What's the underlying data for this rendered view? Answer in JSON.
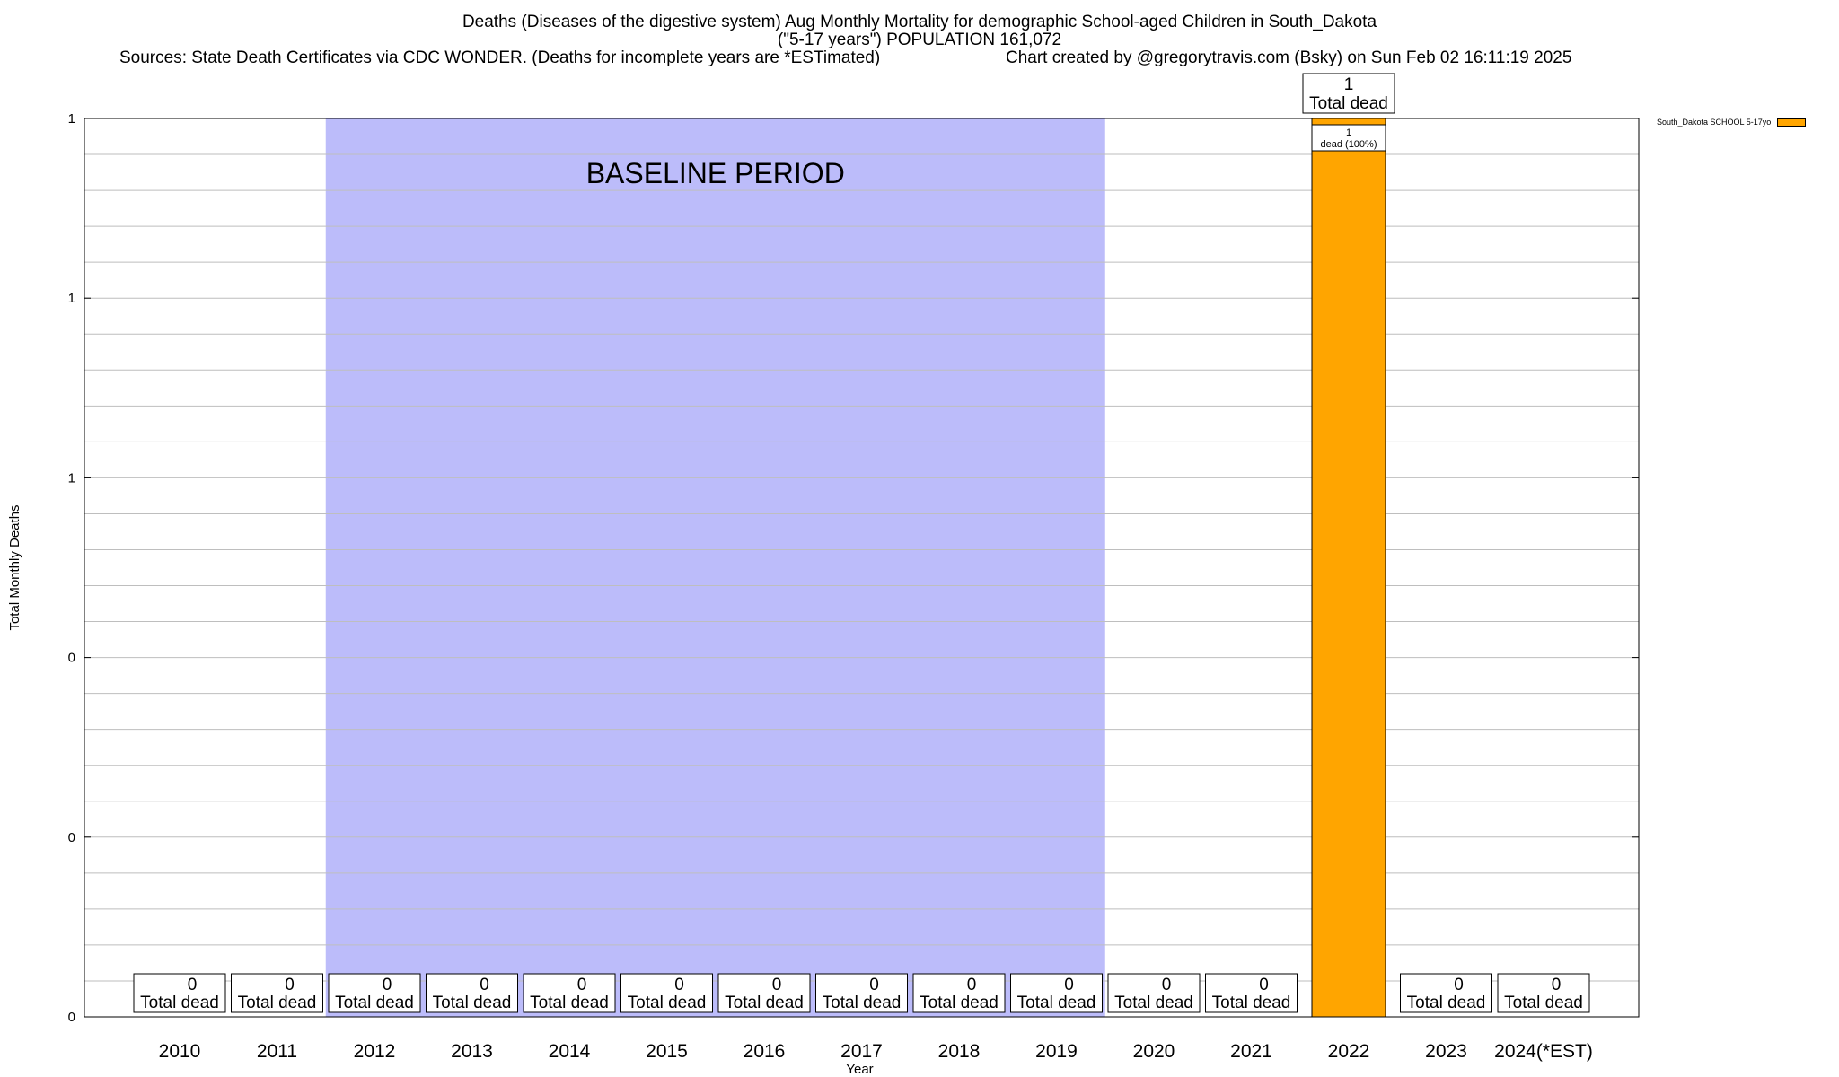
{
  "chart": {
    "title_line1": "Deaths (Diseases of the digestive system) Aug Monthly Mortality for demographic School-aged Children in South_Dakota",
    "title_line2": "(\"5-17 years\") POPULATION 161,072",
    "sources": "Sources: State Death Certificates via CDC WONDER. (Deaths for incomplete years are *ESTimated)",
    "credit": "Chart created by @gregorytravis.com (Bsky) on Sun Feb 02 16:11:19 2025"
  },
  "legend": {
    "label": "South_Dakota SCHOOL 5-17yo",
    "color": "#FFA500"
  },
  "colors": {
    "bar": "#FFA500",
    "baseline": "#BCBCFA",
    "grid": "#BEBEBE"
  },
  "chart_data": {
    "type": "bar",
    "categories": [
      "2010",
      "2011",
      "2012",
      "2013",
      "2014",
      "2015",
      "2016",
      "2017",
      "2018",
      "2019",
      "2020",
      "2021",
      "2022",
      "2023",
      "2024(*EST)"
    ],
    "series": [
      {
        "name": "South_Dakota SCHOOL 5-17yo",
        "values": [
          0,
          0,
          0,
          0,
          0,
          0,
          0,
          0,
          0,
          0,
          0,
          0,
          1,
          0,
          0
        ]
      }
    ],
    "data_labels": {
      "count_suffix": "Total dead",
      "inner_label_line1": "1",
      "inner_label_line2": "dead (100%)"
    },
    "baseline_period": {
      "label": "BASELINE PERIOD",
      "from": "2012",
      "to": "2019"
    },
    "xlabel": "Year",
    "ylabel": "Total Monthly Deaths",
    "ylim": [
      0,
      1
    ],
    "ytick_labels": [
      "0",
      "0",
      "0",
      "1",
      "1",
      "1"
    ],
    "grid": true,
    "legend_position": "top-right"
  }
}
